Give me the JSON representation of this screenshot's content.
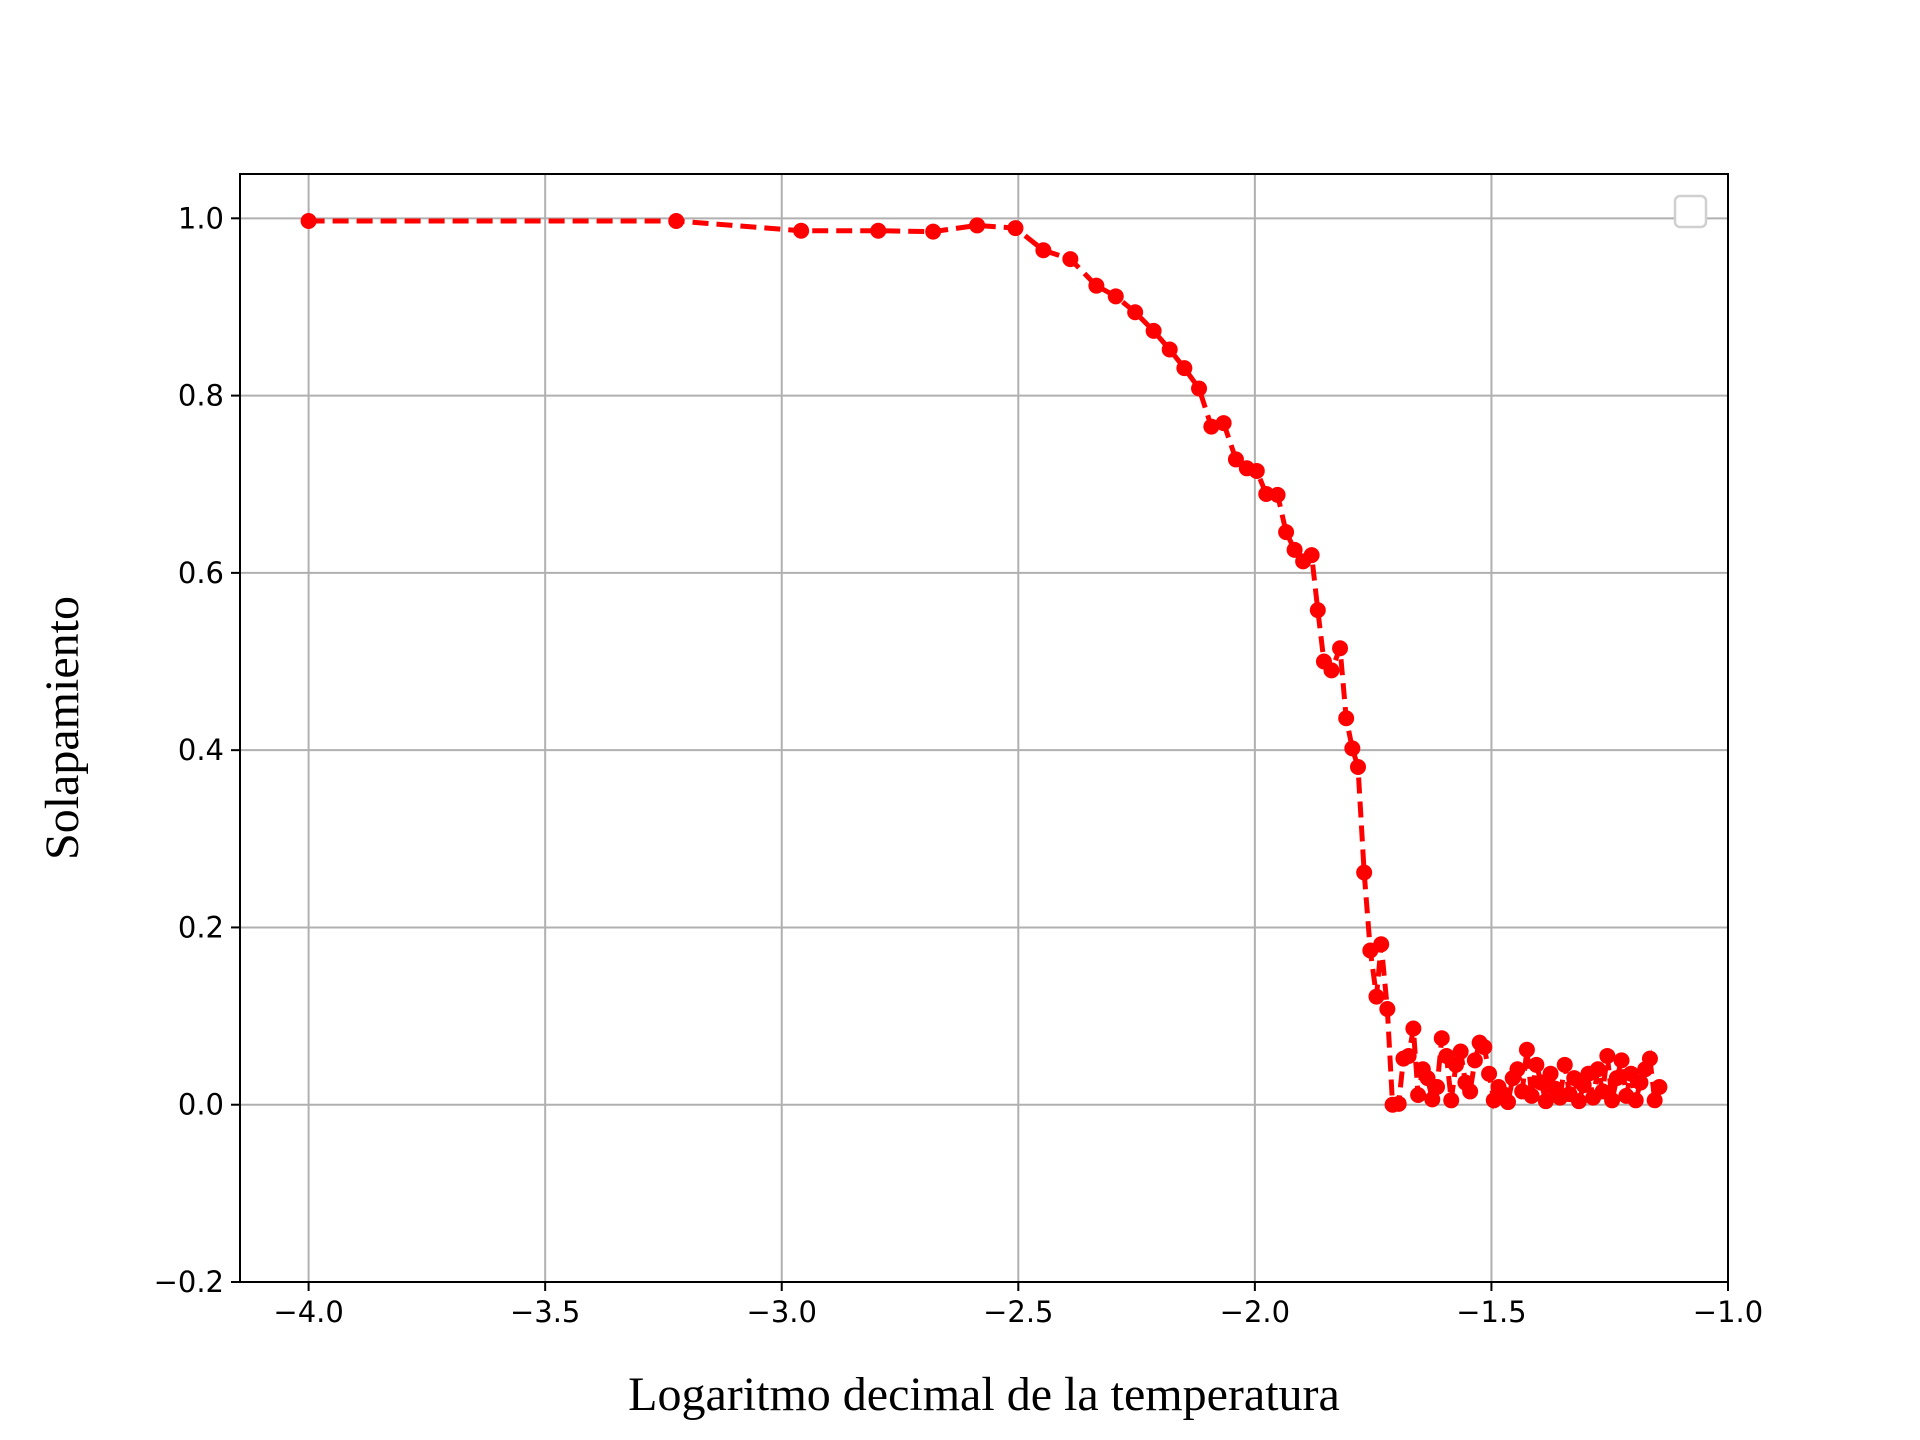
{
  "chart_data": {
    "type": "line",
    "xlabel": "Logaritmo decimal de la temperatura",
    "ylabel": "Solapamiento",
    "color": "#ff0000",
    "linestyle": "dashed",
    "marker": "o",
    "grid": true,
    "legend": "upper right",
    "xlim": [
      -4.145,
      -1.0
    ],
    "ylim": [
      -0.2,
      1.05
    ],
    "xticks": [
      {
        "value": -4.0,
        "label": "−4.0"
      },
      {
        "value": -3.5,
        "label": "−3.5"
      },
      {
        "value": -3.0,
        "label": "−3.0"
      },
      {
        "value": -2.5,
        "label": "−2.5"
      },
      {
        "value": -2.0,
        "label": "−2.0"
      },
      {
        "value": -1.5,
        "label": "−1.5"
      },
      {
        "value": -1.0,
        "label": "−1.0"
      }
    ],
    "yticks": [
      {
        "value": -0.2,
        "label": "−0.2"
      },
      {
        "value": 0.0,
        "label": "0.0"
      },
      0.2,
      0.4,
      0.6,
      0.8,
      {
        "value": 1.0,
        "label": "1.0"
      }
    ],
    "x": [
      -4.0,
      -3.223,
      -2.959,
      -2.796,
      -2.68,
      -2.587,
      -2.506,
      -2.447,
      -2.39,
      -2.335,
      -2.294,
      -2.253,
      -2.214,
      -2.18,
      -2.149,
      -2.118,
      -2.092,
      -2.066,
      -2.04,
      -2.017,
      -1.996,
      -1.976,
      -1.952,
      -1.934,
      -1.916,
      -1.898,
      -1.88,
      -1.867,
      -1.854,
      -1.838,
      -1.82,
      -1.807,
      -1.794,
      -1.782,
      -1.769,
      -1.756,
      -1.743,
      -1.733,
      -1.72,
      -1.709,
      -1.696,
      -1.686,
      -1.675,
      -1.665,
      -1.655,
      -1.645,
      -1.635,
      -1.625,
      -1.615,
      -1.605,
      -1.595,
      -1.585,
      -1.575,
      -1.565,
      -1.555,
      -1.545,
      -1.535,
      -1.525,
      -1.515,
      -1.505,
      -1.495,
      -1.485,
      -1.475,
      -1.465,
      -1.455,
      -1.445,
      -1.435,
      -1.425,
      -1.415,
      -1.405,
      -1.395,
      -1.385,
      -1.375,
      -1.365,
      -1.355,
      -1.345,
      -1.335,
      -1.325,
      -1.315,
      -1.305,
      -1.295,
      -1.285,
      -1.275,
      -1.265,
      -1.255,
      -1.245,
      -1.235,
      -1.225,
      -1.215,
      -1.205,
      -1.195,
      -1.185,
      -1.175,
      -1.165,
      -1.155,
      -1.145
    ],
    "values": [
      0.997,
      0.997,
      0.986,
      0.986,
      0.985,
      0.992,
      0.989,
      0.964,
      0.954,
      0.924,
      0.912,
      0.894,
      0.873,
      0.852,
      0.831,
      0.808,
      0.765,
      0.769,
      0.728,
      0.718,
      0.715,
      0.689,
      0.688,
      0.646,
      0.626,
      0.613,
      0.62,
      0.558,
      0.5,
      0.49,
      0.515,
      0.436,
      0.402,
      0.381,
      0.262,
      0.174,
      0.122,
      0.181,
      0.108,
      0.0,
      0.001,
      0.052,
      0.055,
      0.086,
      0.011,
      0.04,
      0.03,
      0.006,
      0.02,
      0.075,
      0.055,
      0.005,
      0.045,
      0.06,
      0.025,
      0.015,
      0.05,
      0.07,
      0.065,
      0.035,
      0.005,
      0.02,
      0.012,
      0.003,
      0.03,
      0.04,
      0.015,
      0.062,
      0.01,
      0.045,
      0.025,
      0.004,
      0.035,
      0.018,
      0.008,
      0.045,
      0.012,
      0.03,
      0.004,
      0.022,
      0.035,
      0.008,
      0.04,
      0.015,
      0.055,
      0.005,
      0.03,
      0.05,
      0.01,
      0.035,
      0.005,
      0.025,
      0.04,
      0.052,
      0.005,
      0.02
    ]
  }
}
